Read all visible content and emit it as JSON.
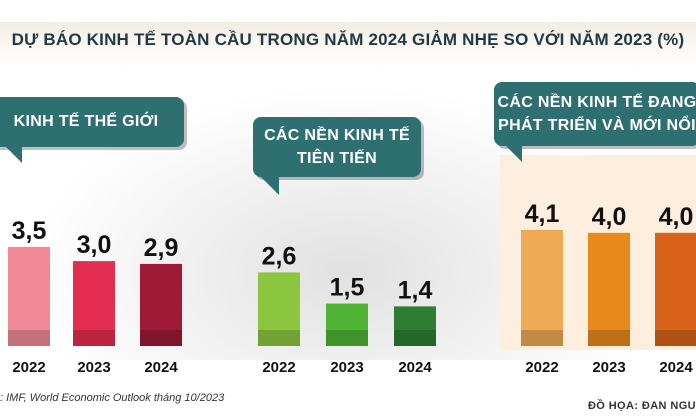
{
  "title": "DỰ BÁO KINH TẾ TOÀN CẦU TRONG NĂM 2024 GIẢM NHẸ SO VỚI NĂM 2023 (%)",
  "source": ": IMF, World Economic Outlook tháng 10/2023",
  "credit": "ĐỒ HỌA: ĐAN NGU",
  "chart_data": [
    {
      "type": "bar",
      "title": "KINH TẾ THẾ GIỚI",
      "categories": [
        "2022",
        "2023",
        "2024"
      ],
      "values": [
        3.5,
        3.0,
        2.9
      ],
      "value_labels": [
        "3,5",
        "3,0",
        "2,9"
      ],
      "colors": [
        "#ef8a96",
        "#e52e4f",
        "#9e1a35"
      ]
    },
    {
      "type": "bar",
      "title": "CÁC NỀN KINH TẾ TIÊN TIẾN",
      "title_lines": [
        "CÁC NỀN KINH TẾ",
        "TIÊN TIẾN"
      ],
      "categories": [
        "2022",
        "2023",
        "2024"
      ],
      "values": [
        2.6,
        1.5,
        1.4
      ],
      "value_labels": [
        "2,6",
        "1,5",
        "1,4"
      ],
      "colors": [
        "#8cc63f",
        "#4fb335",
        "#2e7d32"
      ]
    },
    {
      "type": "bar",
      "title": "CÁC NỀN KINH TẾ ĐANG PHÁT TRIỂN VÀ MỚI NỔI",
      "title_lines": [
        "CÁC NỀN KINH TẾ ĐANG",
        "PHÁT TRIỂN VÀ MỚI NỔI"
      ],
      "categories": [
        "2022",
        "2023",
        "2024"
      ],
      "values": [
        4.1,
        4.0,
        4.0
      ],
      "value_labels": [
        "4,1",
        "4,0",
        "4,0"
      ],
      "colors": [
        "#f0a955",
        "#e8891c",
        "#d8621a"
      ]
    }
  ]
}
